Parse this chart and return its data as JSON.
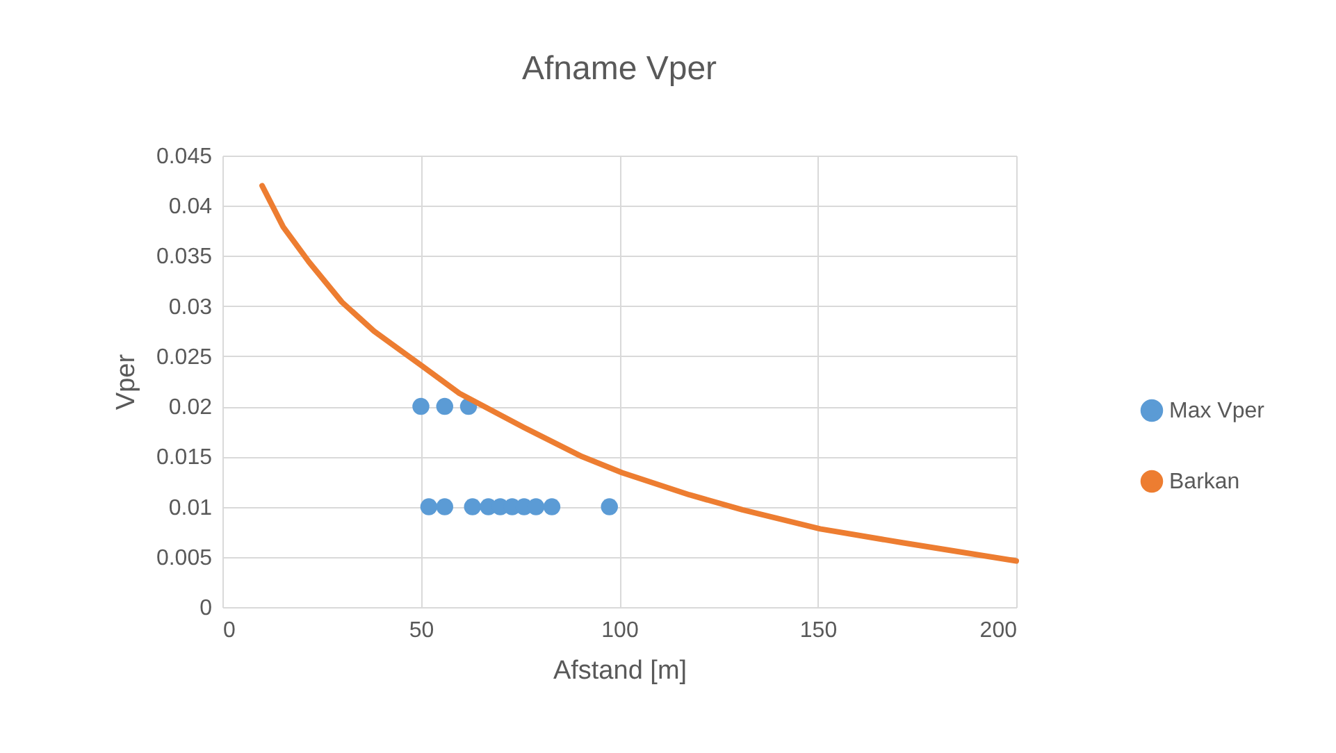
{
  "chart_data": {
    "type": "scatter",
    "title": "Afname Vper",
    "xlabel": "Afstand [m]",
    "ylabel": "Vper",
    "xlim": [
      0,
      200
    ],
    "xticks": [
      0,
      50,
      100,
      150,
      200
    ],
    "ylim": [
      0,
      0.045
    ],
    "yticks": [
      0,
      0.005,
      0.01,
      0.015,
      0.02,
      0.025,
      0.03,
      0.035,
      0.04,
      0.045
    ],
    "grid": true,
    "legend": "right",
    "marker": "circle",
    "series": [
      {
        "name": "Max Vper",
        "color": "#5b9bd5",
        "x": [
          50,
          56,
          62,
          52,
          56,
          63,
          67,
          70,
          73,
          76,
          79,
          83,
          97.5
        ],
        "values": [
          0.02,
          0.02,
          0.02,
          0.01,
          0.01,
          0.01,
          0.01,
          0.01,
          0.01,
          0.01,
          0.01,
          0.01,
          0.01
        ]
      },
      {
        "name": "Barkan",
        "type": "line",
        "color": "#ed7d31",
        "line_style": "solid",
        "marker": "none",
        "x": [
          10,
          15.3,
          21.8,
          30.1,
          38.2,
          50.4,
          59.7,
          76,
          90.6,
          100.7,
          117.6,
          131,
          150.6,
          171.6,
          200
        ],
        "values": [
          0.042,
          0.0379,
          0.0344,
          0.0304,
          0.0275,
          0.024,
          0.0213,
          0.0179,
          0.015,
          0.0134,
          0.0112,
          0.0097,
          0.0078,
          0.0064,
          0.0046
        ]
      }
    ]
  }
}
